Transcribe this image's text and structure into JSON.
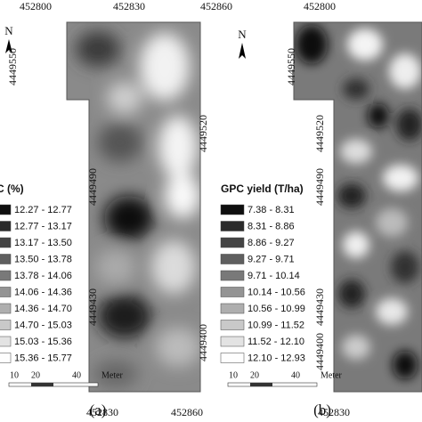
{
  "panels": [
    {
      "label": "(a)",
      "north": "N",
      "x_labels_top": [
        "452800",
        "452830",
        "452860"
      ],
      "x_labels_bottom": [
        "452830",
        "452860"
      ],
      "y_labels": [
        "4449550",
        "4449520",
        "4449490",
        "4449430",
        "4449400"
      ],
      "legend": {
        "title": "PC (%)",
        "items": [
          "12.27 - 12.77",
          "12.77 - 13.17",
          "13.17 - 13.50",
          "13.50 - 13.78",
          "13.78 - 14.06",
          "14.06 - 14.36",
          "14.36 - 14.70",
          "14.70 - 15.03",
          "15.03 - 15.36",
          "15.36 - 15.77"
        ]
      },
      "scale": {
        "ticks": [
          "10",
          "20",
          "40"
        ],
        "unit": "Meter"
      }
    },
    {
      "label": "(b)",
      "north": "N",
      "x_labels_top": [
        "452800"
      ],
      "x_labels_bottom": [
        "452830"
      ],
      "y_labels": [
        "4449550",
        "4449520",
        "4449490",
        "4449460",
        "4449430",
        "4449400"
      ],
      "legend": {
        "title": "GPC yield (T/ha)",
        "items": [
          "7.38 - 8.31",
          "8.31 - 8.86",
          "8.86 - 9.27",
          "9.27 - 9.71",
          "9.71 - 10.14",
          "10.14 - 10.56",
          "10.56 - 10.99",
          "10.99 - 11.52",
          "11.52 - 12.10",
          "12.10 - 12.93"
        ]
      },
      "scale": {
        "ticks": [
          "10",
          "20",
          "40"
        ],
        "unit": "Meter"
      }
    }
  ]
}
